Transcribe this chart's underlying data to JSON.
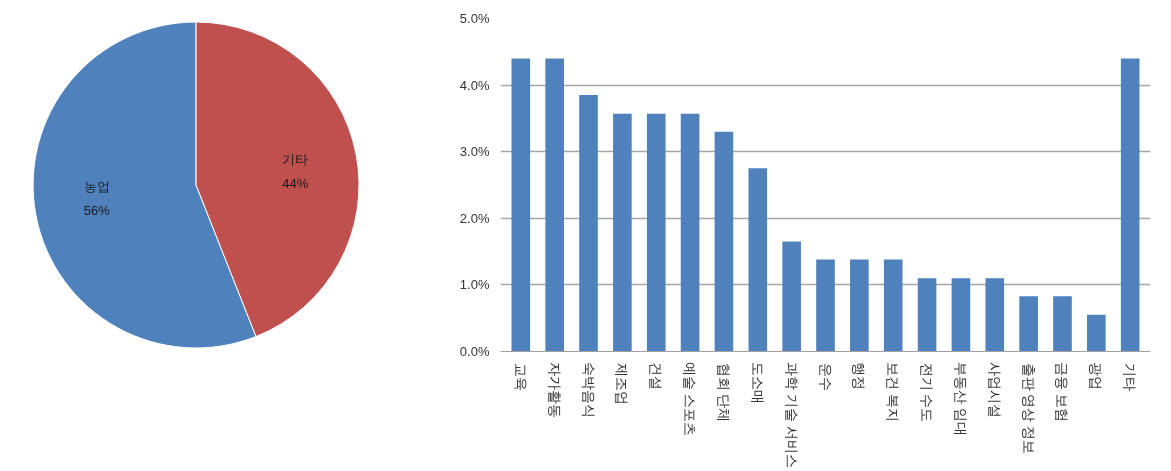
{
  "chart_data": [
    {
      "type": "pie",
      "categories": [
        "농업",
        "기타"
      ],
      "values": [
        56,
        44
      ],
      "colors": [
        "#4f81bd",
        "#c0504d"
      ],
      "value_labels": [
        "56%",
        "44%"
      ]
    },
    {
      "type": "bar",
      "categories": [
        "교육",
        "자가활동",
        "숙박음식",
        "제조업",
        "건설",
        "예술 스포츠",
        "협회 단체",
        "도소매",
        "과학 기술 서비스",
        "운수",
        "행정",
        "보건 복지",
        "전기 수도",
        "부동산 임대",
        "사업시설",
        "출판 영상 정보",
        "금융 보험",
        "광업",
        "기타"
      ],
      "values": [
        4.4,
        4.4,
        3.85,
        3.57,
        3.57,
        3.57,
        3.3,
        2.75,
        1.65,
        1.38,
        1.38,
        1.38,
        1.1,
        1.1,
        1.1,
        0.83,
        0.83,
        0.55,
        4.4
      ],
      "color": "#4f81bd",
      "ylim": [
        0,
        5
      ],
      "yticks": [
        {
          "value": 0,
          "label": "0.0%"
        },
        {
          "value": 1,
          "label": "1.0%"
        },
        {
          "value": 2,
          "label": "2.0%"
        },
        {
          "value": 3,
          "label": "3.0%"
        },
        {
          "value": 4,
          "label": "4.0%"
        },
        {
          "value": 5,
          "label": "5.0%"
        }
      ],
      "grid": "y"
    }
  ]
}
